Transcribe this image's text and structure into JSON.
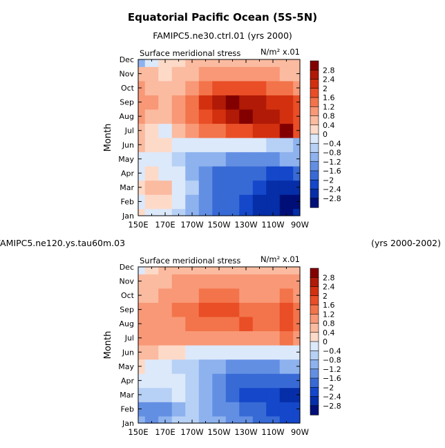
{
  "figure": {
    "title": "Equatorial Pacific Ocean (5S-5N)",
    "subtitle_top": "FAMIPC5.ne30.ctrl.01 (yrs 2000)",
    "subtitle_bottom_left": "FAMIPC5.ne120.ys.tau60m.03",
    "subtitle_bottom_right": "(yrs 2000-2002)"
  },
  "chart_data": [
    {
      "type": "heatmap",
      "title": "FAMIPC5.ne30.ctrl.01 (yrs 2000)",
      "panel_label": "Surface meridional stress",
      "units": "N/m² x.01",
      "ylabel": "Month",
      "xlabel": "",
      "x_ticks": [
        "150E",
        "170E",
        "170W",
        "150W",
        "130W",
        "110W",
        "90W"
      ],
      "y_ticks": [
        "Jan",
        "Feb",
        "Mar",
        "Apr",
        "May",
        "Jun",
        "Jul",
        "Aug",
        "Sep",
        "Oct",
        "Nov",
        "Dec"
      ],
      "colorbar_levels": [
        "2.8",
        "2.4",
        "2",
        "1.6",
        "1.2",
        "0.8",
        "0.4",
        "0",
        "−0.4",
        "−0.8",
        "−1.2",
        "−1.6",
        "−2",
        "−2.4",
        "−2.8"
      ],
      "colorbar_colors": [
        "#830000",
        "#b01a06",
        "#d3300f",
        "#e94e26",
        "#f3744a",
        "#f89877",
        "#fbbba0",
        "#fddac8",
        "#dce9fb",
        "#b7d0f5",
        "#8db2ee",
        "#638fe3",
        "#386ad6",
        "#1447c9",
        "#052ea8",
        "#000f77"
      ],
      "x": [
        150,
        160,
        170,
        180,
        190,
        200,
        210,
        220,
        230,
        240,
        250,
        260,
        270
      ],
      "y": [
        "Jan",
        "Feb",
        "Mar",
        "Apr",
        "May",
        "Jun",
        "Jul",
        "Aug",
        "Sep",
        "Oct",
        "Nov",
        "Dec"
      ],
      "z": [
        [
          0.0,
          -0.2,
          -0.4,
          -0.8,
          -1.2,
          -1.6,
          -2.0,
          -2.0,
          -2.2,
          -2.6,
          -2.8,
          -3.0,
          -2.8
        ],
        [
          -0.2,
          0.2,
          0.0,
          -0.4,
          -1.0,
          -1.6,
          -2.0,
          -2.0,
          -2.2,
          -2.6,
          -2.8,
          -3.0,
          -3.0
        ],
        [
          0.0,
          0.6,
          0.4,
          -0.2,
          -0.8,
          -1.4,
          -1.8,
          -1.8,
          -2.0,
          -2.4,
          -2.6,
          -2.6,
          -2.8
        ],
        [
          -0.2,
          0.0,
          -0.2,
          -0.4,
          -1.0,
          -1.4,
          -1.8,
          -1.8,
          -1.8,
          -2.0,
          -2.2,
          -2.2,
          -2.0
        ],
        [
          -0.2,
          -0.2,
          -0.4,
          -0.8,
          -1.0,
          -1.2,
          -1.2,
          -1.4,
          -1.4,
          -1.4,
          -1.4,
          -1.2,
          -1.2
        ],
        [
          0.4,
          0.2,
          0.0,
          -0.2,
          -0.2,
          -0.2,
          -0.2,
          -0.2,
          -0.4,
          -0.4,
          -0.6,
          -0.8,
          -1.0
        ],
        [
          0.6,
          0.2,
          -0.2,
          0.4,
          0.8,
          1.2,
          1.4,
          1.8,
          1.8,
          2.0,
          2.2,
          2.8,
          1.6
        ],
        [
          0.8,
          0.4,
          0.4,
          0.8,
          1.2,
          1.6,
          2.2,
          2.6,
          3.0,
          2.6,
          2.4,
          2.2,
          1.6
        ],
        [
          1.0,
          0.8,
          0.6,
          0.8,
          1.2,
          2.0,
          2.6,
          2.8,
          2.6,
          2.4,
          2.2,
          2.0,
          1.6
        ],
        [
          0.8,
          0.6,
          0.4,
          0.6,
          1.0,
          1.4,
          1.6,
          1.8,
          1.6,
          1.6,
          1.4,
          1.2,
          1.0
        ],
        [
          0.6,
          0.4,
          0.2,
          0.4,
          0.6,
          0.8,
          0.8,
          0.8,
          0.8,
          0.8,
          0.8,
          0.6,
          0.6
        ],
        [
          -1.2,
          -0.4,
          0.0,
          0.2,
          0.4,
          0.4,
          0.4,
          0.6,
          0.6,
          0.6,
          0.4,
          0.4,
          0.4
        ]
      ]
    },
    {
      "type": "heatmap",
      "title": "FAMIPC5.ne120.ys.tau60m.03 (yrs 2000-2002)",
      "panel_label": "Surface meridional stress",
      "units": "N/m² x.01",
      "ylabel": "Month",
      "xlabel": "",
      "x_ticks": [
        "150E",
        "170E",
        "170W",
        "150W",
        "130W",
        "110W",
        "90W"
      ],
      "y_ticks": [
        "Jan",
        "Feb",
        "Mar",
        "Apr",
        "May",
        "Jun",
        "Jul",
        "Aug",
        "Sep",
        "Oct",
        "Nov",
        "Dec"
      ],
      "colorbar_levels": [
        "2.8",
        "2.4",
        "2",
        "1.6",
        "1.2",
        "0.8",
        "0.4",
        "0",
        "−0.4",
        "−0.8",
        "−1.2",
        "−1.6",
        "−2",
        "−2.4",
        "−2.8"
      ],
      "colorbar_colors": [
        "#830000",
        "#b01a06",
        "#d3300f",
        "#e94e26",
        "#f3744a",
        "#f89877",
        "#fbbba0",
        "#fddac8",
        "#dce9fb",
        "#b7d0f5",
        "#8db2ee",
        "#638fe3",
        "#386ad6",
        "#1447c9",
        "#052ea8",
        "#000f77"
      ],
      "x": [
        150,
        160,
        170,
        180,
        190,
        200,
        210,
        220,
        230,
        240,
        250,
        260,
        270
      ],
      "y": [
        "Jan",
        "Feb",
        "Mar",
        "Apr",
        "May",
        "Jun",
        "Jul",
        "Aug",
        "Sep",
        "Oct",
        "Nov",
        "Dec"
      ],
      "z": [
        [
          -1.2,
          -1.4,
          -1.2,
          -0.8,
          -0.8,
          -1.0,
          -1.2,
          -1.4,
          -1.6,
          -1.8,
          -2.0,
          -2.2,
          -2.2
        ],
        [
          -1.4,
          -1.6,
          -1.4,
          -1.0,
          -0.8,
          -1.0,
          -1.4,
          -1.6,
          -1.8,
          -2.0,
          -2.2,
          -2.4,
          -2.4
        ],
        [
          -0.6,
          -0.8,
          -0.6,
          -0.4,
          -0.6,
          -1.0,
          -1.6,
          -2.0,
          -2.2,
          -2.2,
          -2.4,
          -2.6,
          -2.8
        ],
        [
          -0.2,
          -0.4,
          -0.4,
          -0.4,
          -0.6,
          -1.0,
          -1.4,
          -1.8,
          -2.0,
          -2.0,
          -2.0,
          -2.0,
          -2.0
        ],
        [
          0.2,
          -0.2,
          -0.4,
          -0.6,
          -0.8,
          -1.0,
          -1.2,
          -1.4,
          -1.4,
          -1.4,
          -1.4,
          -1.2,
          -1.2
        ],
        [
          0.4,
          0.4,
          0.2,
          0.0,
          -0.2,
          -0.4,
          -0.4,
          -0.4,
          -0.4,
          -0.4,
          -0.4,
          -0.4,
          -0.4
        ],
        [
          0.8,
          0.8,
          0.8,
          0.8,
          0.8,
          0.8,
          0.8,
          0.8,
          0.8,
          0.8,
          0.8,
          1.2,
          0.8
        ],
        [
          0.8,
          0.8,
          1.0,
          1.0,
          1.2,
          1.2,
          1.2,
          1.4,
          1.6,
          1.2,
          1.2,
          1.6,
          1.2
        ],
        [
          0.8,
          0.8,
          1.0,
          1.2,
          1.4,
          1.6,
          1.8,
          1.6,
          1.4,
          1.2,
          1.2,
          1.6,
          1.2
        ],
        [
          0.6,
          0.6,
          0.8,
          1.0,
          1.0,
          1.2,
          1.2,
          1.2,
          1.0,
          1.0,
          1.0,
          1.2,
          1.0
        ],
        [
          0.4,
          0.6,
          0.6,
          0.8,
          0.8,
          0.8,
          0.8,
          0.8,
          0.8,
          0.8,
          0.8,
          0.8,
          0.8
        ],
        [
          -0.2,
          0.2,
          0.4,
          0.4,
          0.6,
          0.6,
          0.6,
          0.6,
          0.6,
          0.6,
          0.6,
          0.6,
          0.6
        ]
      ]
    }
  ]
}
